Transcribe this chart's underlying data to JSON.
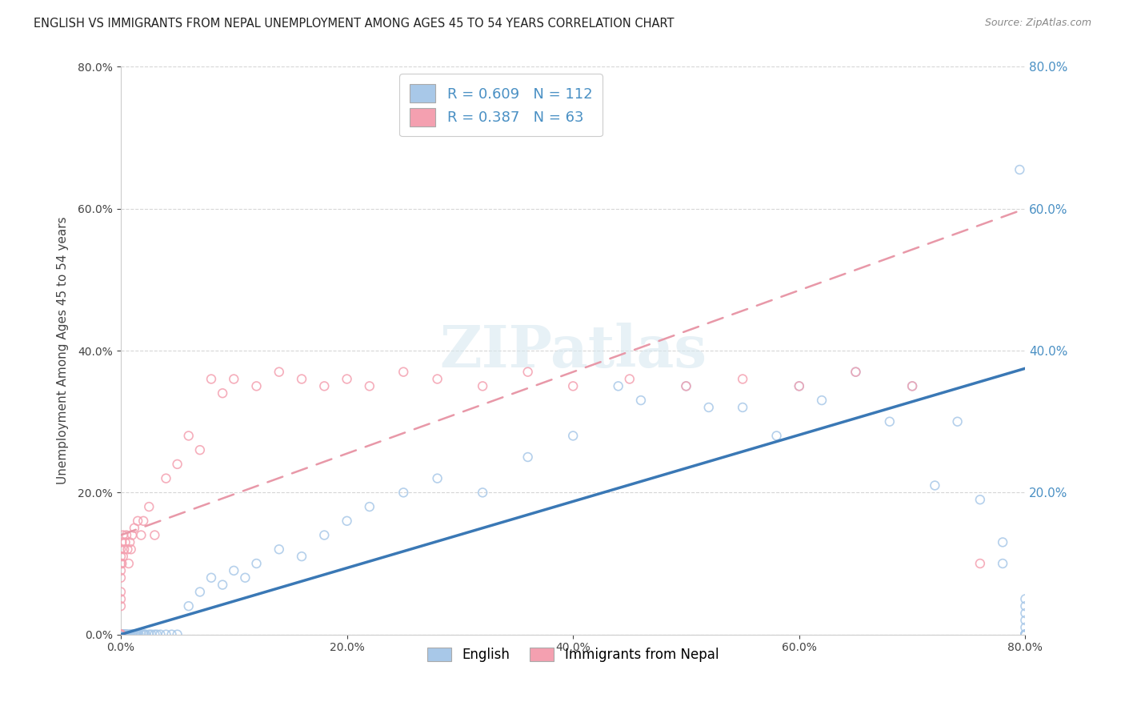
{
  "title": "ENGLISH VS IMMIGRANTS FROM NEPAL UNEMPLOYMENT AMONG AGES 45 TO 54 YEARS CORRELATION CHART",
  "source": "Source: ZipAtlas.com",
  "ylabel": "Unemployment Among Ages 45 to 54 years",
  "legend_label1": "English",
  "legend_label2": "Immigrants from Nepal",
  "R1": 0.609,
  "N1": 112,
  "R2": 0.387,
  "N2": 63,
  "color_english": "#a8c8e8",
  "color_nepal": "#f4a0b0",
  "color_line_english": "#3a78b5",
  "color_line_nepal": "#e898a8",
  "xmin": 0.0,
  "xmax": 0.8,
  "ymin": 0.0,
  "ymax": 0.8,
  "eng_line_x0": 0.0,
  "eng_line_y0": 0.0,
  "eng_line_x1": 0.8,
  "eng_line_y1": 0.375,
  "nep_line_x0": 0.0,
  "nep_line_y0": 0.14,
  "nep_line_x1": 0.8,
  "nep_line_y1": 0.6,
  "right_yticks": [
    0.2,
    0.4,
    0.6,
    0.8
  ],
  "right_ytick_color": "#4a90c4",
  "english_scatter_x": [
    0.0,
    0.0,
    0.0,
    0.0,
    0.0,
    0.0,
    0.0,
    0.0,
    0.0,
    0.0,
    0.0,
    0.0,
    0.0,
    0.0,
    0.0,
    0.0,
    0.0,
    0.0,
    0.0,
    0.0,
    0.0,
    0.0,
    0.0,
    0.0,
    0.0,
    0.0,
    0.0,
    0.001,
    0.001,
    0.001,
    0.001,
    0.002,
    0.002,
    0.002,
    0.003,
    0.003,
    0.004,
    0.004,
    0.005,
    0.005,
    0.006,
    0.007,
    0.008,
    0.009,
    0.01,
    0.01,
    0.011,
    0.012,
    0.013,
    0.014,
    0.015,
    0.016,
    0.018,
    0.02,
    0.021,
    0.022,
    0.025,
    0.027,
    0.03,
    0.032,
    0.035,
    0.04,
    0.045,
    0.05,
    0.06,
    0.07,
    0.08,
    0.09,
    0.1,
    0.11,
    0.12,
    0.14,
    0.16,
    0.18,
    0.2,
    0.22,
    0.25,
    0.28,
    0.32,
    0.36,
    0.4,
    0.44,
    0.46,
    0.5,
    0.52,
    0.55,
    0.58,
    0.6,
    0.62,
    0.65,
    0.68,
    0.7,
    0.72,
    0.74,
    0.76,
    0.78,
    0.78,
    0.795,
    0.8,
    0.8,
    0.8,
    0.8,
    0.8,
    0.8,
    0.8,
    0.8,
    0.8,
    0.8,
    0.8,
    0.8,
    0.8,
    0.8
  ],
  "english_scatter_y": [
    0.0,
    0.0,
    0.0,
    0.0,
    0.0,
    0.0,
    0.0,
    0.0,
    0.0,
    0.0,
    0.0,
    0.0,
    0.0,
    0.0,
    0.0,
    0.0,
    0.0,
    0.0,
    0.0,
    0.0,
    0.0,
    0.0,
    0.0,
    0.0,
    0.0,
    0.0,
    0.0,
    0.0,
    0.0,
    0.0,
    0.0,
    0.0,
    0.0,
    0.0,
    0.0,
    0.0,
    0.0,
    0.0,
    0.0,
    0.0,
    0.0,
    0.0,
    0.0,
    0.0,
    0.0,
    0.0,
    0.0,
    0.0,
    0.0,
    0.0,
    0.0,
    0.0,
    0.0,
    0.0,
    0.0,
    0.0,
    0.0,
    0.0,
    0.0,
    0.0,
    0.0,
    0.0,
    0.0,
    0.0,
    0.04,
    0.06,
    0.08,
    0.07,
    0.09,
    0.08,
    0.1,
    0.12,
    0.11,
    0.14,
    0.16,
    0.18,
    0.2,
    0.22,
    0.2,
    0.25,
    0.28,
    0.35,
    0.33,
    0.35,
    0.32,
    0.32,
    0.28,
    0.35,
    0.33,
    0.37,
    0.3,
    0.35,
    0.21,
    0.3,
    0.19,
    0.13,
    0.1,
    0.655,
    0.05,
    0.04,
    0.03,
    0.02,
    0.01,
    0.0,
    0.0,
    0.0,
    0.0,
    0.0,
    0.0,
    0.0,
    0.0,
    0.0
  ],
  "nepal_scatter_x": [
    0.0,
    0.0,
    0.0,
    0.0,
    0.0,
    0.0,
    0.0,
    0.0,
    0.0,
    0.0,
    0.0,
    0.0,
    0.0,
    0.0,
    0.0,
    0.0,
    0.0,
    0.0,
    0.0,
    0.0,
    0.001,
    0.001,
    0.002,
    0.002,
    0.003,
    0.004,
    0.005,
    0.006,
    0.007,
    0.008,
    0.009,
    0.01,
    0.012,
    0.015,
    0.018,
    0.02,
    0.025,
    0.03,
    0.04,
    0.05,
    0.06,
    0.07,
    0.08,
    0.09,
    0.1,
    0.12,
    0.14,
    0.16,
    0.18,
    0.2,
    0.22,
    0.25,
    0.28,
    0.32,
    0.36,
    0.4,
    0.45,
    0.5,
    0.55,
    0.6,
    0.65,
    0.7,
    0.76
  ],
  "nepal_scatter_y": [
    0.0,
    0.0,
    0.0,
    0.0,
    0.0,
    0.0,
    0.0,
    0.0,
    0.0,
    0.0,
    0.0,
    0.0,
    0.04,
    0.05,
    0.06,
    0.08,
    0.09,
    0.1,
    0.11,
    0.12,
    0.1,
    0.13,
    0.11,
    0.14,
    0.12,
    0.13,
    0.14,
    0.12,
    0.1,
    0.13,
    0.12,
    0.14,
    0.15,
    0.16,
    0.14,
    0.16,
    0.18,
    0.14,
    0.22,
    0.24,
    0.28,
    0.26,
    0.36,
    0.34,
    0.36,
    0.35,
    0.37,
    0.36,
    0.35,
    0.36,
    0.35,
    0.37,
    0.36,
    0.35,
    0.37,
    0.35,
    0.36,
    0.35,
    0.36,
    0.35,
    0.37,
    0.35,
    0.1
  ]
}
